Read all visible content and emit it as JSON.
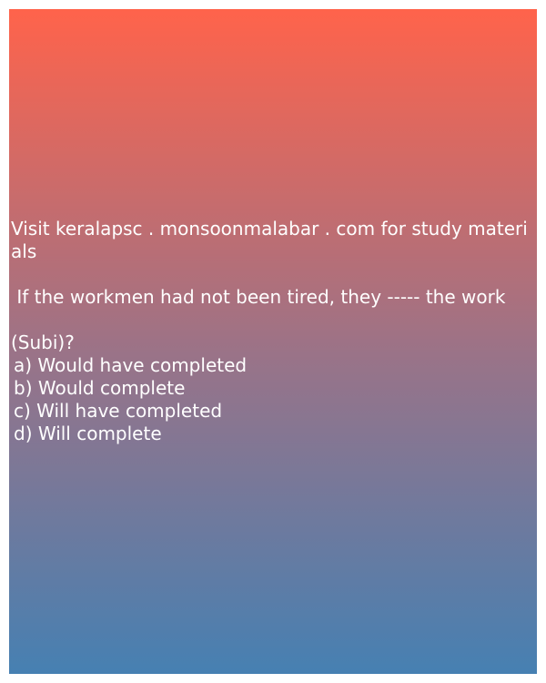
{
  "colors": {
    "gradient_top": "#ff634b",
    "gradient_bottom": "#4680b2",
    "text": "#ffffff"
  },
  "header": {
    "visit_text": "Visit keralapsc . monsoonmalabar . com for study materials"
  },
  "question": {
    "text": " If the workmen had not been tired, they ----- the work",
    "source": "(Subi)?"
  },
  "options": [
    "a) Would have completed",
    "b) Would complete",
    "c) Will have completed",
    "d) Will complete"
  ]
}
